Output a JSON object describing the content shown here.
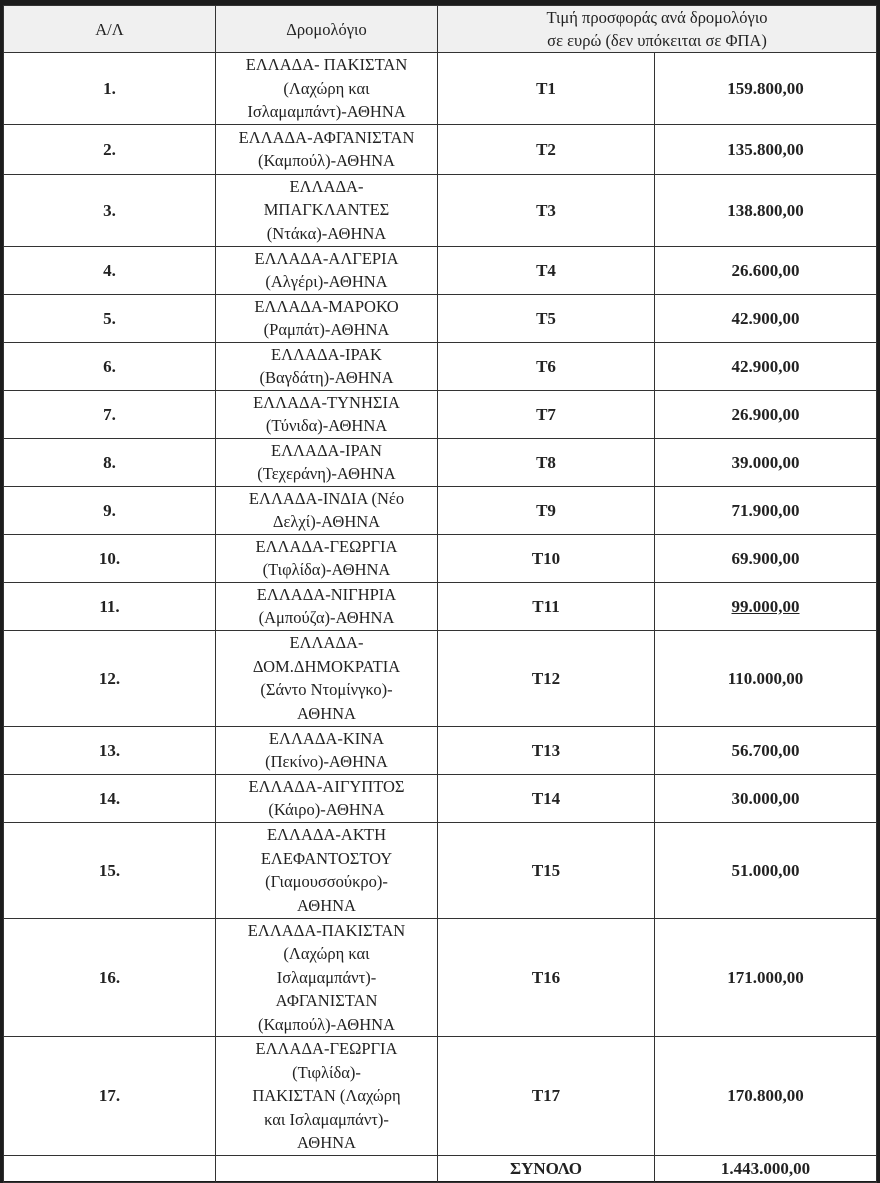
{
  "header": {
    "col_index": "Α/Λ",
    "col_route": "Δρομολόγιο",
    "col_price_line1": "Τιμή προσφοράς ανά δρομολόγιο",
    "col_price_line2": "σε ευρώ (δεν υπόκειται σε ΦΠΑ)"
  },
  "rows": [
    {
      "num": "1.",
      "route": [
        "ΕΛΛΑΔΑ- ΠΑΚΙΣΤΑΝ",
        "(Λαχώρη και",
        "Ισλαμαμπάντ)-ΑΘΗΝΑ"
      ],
      "code": "T1",
      "price": "159.800,00"
    },
    {
      "num": "2.",
      "route": [
        "ΕΛΛΑΔΑ-ΑΦΓΑΝΙΣΤΑΝ",
        "(Καμπούλ)-ΑΘΗΝΑ"
      ],
      "code": "T2",
      "price": "135.800,00"
    },
    {
      "num": "3.",
      "route": [
        "ΕΛΛΑΔΑ-",
        "ΜΠΑΓΚΛΑΝΤΕΣ",
        "(Ντάκα)-ΑΘΗΝΑ"
      ],
      "code": "T3",
      "price": "138.800,00"
    },
    {
      "num": "4.",
      "route": [
        "ΕΛΛΑΔΑ-ΑΛΓΕΡΙΑ",
        "(Αλγέρι)-ΑΘΗΝΑ"
      ],
      "code": "T4",
      "price": "26.600,00"
    },
    {
      "num": "5.",
      "route": [
        "ΕΛΛΑΔΑ-ΜΑΡΟΚΟ",
        "(Ραμπάτ)-ΑΘΗΝΑ"
      ],
      "code": "T5",
      "price": "42.900,00"
    },
    {
      "num": "6.",
      "route": [
        "ΕΛΛΑΔΑ-ΙΡΑΚ",
        "(Βαγδάτη)-ΑΘΗΝΑ"
      ],
      "code": "T6",
      "price": "42.900,00"
    },
    {
      "num": "7.",
      "route": [
        "ΕΛΛΑΔΑ-ΤΥΝΗΣΙΑ",
        "(Τύνιδα)-ΑΘΗΝΑ"
      ],
      "code": "T7",
      "price": "26.900,00"
    },
    {
      "num": "8.",
      "route": [
        "ΕΛΛΑΔΑ-ΙΡΑΝ",
        "(Τεχεράνη)-ΑΘΗΝΑ"
      ],
      "code": "T8",
      "price": "39.000,00"
    },
    {
      "num": "9.",
      "route": [
        "ΕΛΛΑΔΑ-ΙΝΔΙΑ (Νέο",
        "Δελχί)-ΑΘΗΝΑ"
      ],
      "code": "T9",
      "price": "71.900,00"
    },
    {
      "num": "10.",
      "route": [
        "ΕΛΛΑΔΑ-ΓΕΩΡΓΙΑ",
        "(Τιφλίδα)-ΑΘΗΝΑ"
      ],
      "code": "T10",
      "price": "69.900,00"
    },
    {
      "num": "11.",
      "route": [
        "ΕΛΛΑΔΑ-ΝΙΓΗΡΙΑ",
        "(Αμπούζα)-ΑΘΗΝΑ"
      ],
      "code": "T11",
      "price": "99.000,00",
      "underline": true
    },
    {
      "num": "12.",
      "route": [
        "ΕΛΛΑΔΑ-",
        "ΔΟΜ.ΔΗΜΟΚΡΑΤΙΑ",
        "(Σάντο Ντομίνγκο)-",
        "ΑΘΗΝΑ"
      ],
      "code": "T12",
      "price": "110.000,00"
    },
    {
      "num": "13.",
      "route": [
        "ΕΛΛΑΔΑ-ΚΙΝΑ",
        "(Πεκίνο)-ΑΘΗΝΑ"
      ],
      "code": "T13",
      "price": "56.700,00"
    },
    {
      "num": "14.",
      "route": [
        "ΕΛΛΑΔΑ-ΑΙΓΥΠΤΟΣ",
        "(Κάιρο)-ΑΘΗΝΑ"
      ],
      "code": "T14",
      "price": "30.000,00"
    },
    {
      "num": "15.",
      "route": [
        "ΕΛΛΑΔΑ-ΑΚΤΗ",
        "ΕΛΕΦΑΝΤΟΣΤΟΥ",
        "(Γιαμουσσούκρο)-",
        "ΑΘΗΝΑ"
      ],
      "code": "T15",
      "price": "51.000,00"
    },
    {
      "num": "16.",
      "route": [
        "ΕΛΛΑΔΑ-ΠΑΚΙΣΤΑΝ",
        "(Λαχώρη και",
        "Ισλαμαμπάντ)-",
        "ΑΦΓΑΝΙΣΤΑΝ",
        "(Καμπούλ)-ΑΘΗΝΑ"
      ],
      "code": "T16",
      "price": "171.000,00"
    },
    {
      "num": "17.",
      "route": [
        "ΕΛΛΑΔΑ-ΓΕΩΡΓΙΑ",
        "(Τιφλίδα)-",
        "ΠΑΚΙΣΤΑΝ (Λαχώρη",
        "και Ισλαμαμπάντ)-",
        "ΑΘΗΝΑ"
      ],
      "code": "T17",
      "price": "170.800,00"
    }
  ],
  "total": {
    "label": "ΣΥΝΟΛΟ",
    "value": "1.443.000,00"
  }
}
